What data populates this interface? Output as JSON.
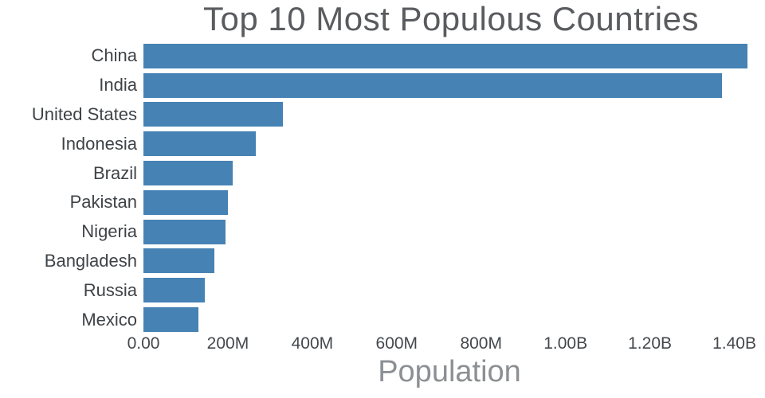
{
  "colors": {
    "bar": "#4682b4",
    "title": "#595b5e",
    "axis_label": "#8c8f93",
    "tick_label": "#44484c",
    "category_label": "#3f4347"
  },
  "chart_data": {
    "type": "bar",
    "orientation": "horizontal",
    "title": "Top 10 Most Populous Countries",
    "xlabel": "Population",
    "ylabel": "",
    "categories": [
      "China",
      "India",
      "United States",
      "Indonesia",
      "Brazil",
      "Pakistan",
      "Nigeria",
      "Bangladesh",
      "Russia",
      "Mexico"
    ],
    "values": [
      1410000000,
      1350000000,
      325000000,
      262000000,
      208000000,
      197000000,
      191000000,
      165000000,
      144000000,
      129000000
    ],
    "xlim": [
      0,
      1450000000
    ],
    "grid": false,
    "legend": "none",
    "ticks": [
      {
        "value": 0,
        "label": "0.00"
      },
      {
        "value": 200000000,
        "label": "200M"
      },
      {
        "value": 400000000,
        "label": "400M"
      },
      {
        "value": 600000000,
        "label": "600M"
      },
      {
        "value": 800000000,
        "label": "800M"
      },
      {
        "value": 1000000000,
        "label": "1.00B"
      },
      {
        "value": 1200000000,
        "label": "1.20B"
      },
      {
        "value": 1400000000,
        "label": "1.40B"
      }
    ]
  }
}
